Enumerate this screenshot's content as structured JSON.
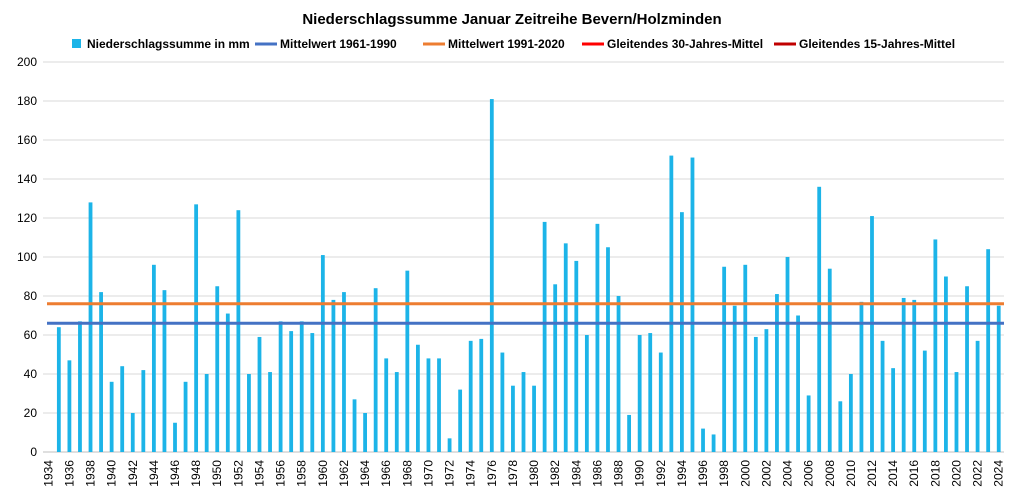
{
  "chart_data": {
    "type": "bar",
    "title": "Niederschlagssumme Januar Zeitreihe Bevern/Holzminden",
    "xlabel": "",
    "ylabel": "",
    "ylim": [
      0,
      200
    ],
    "yticks": [
      0,
      20,
      40,
      60,
      80,
      100,
      120,
      140,
      160,
      180,
      200
    ],
    "grid": "horizontal",
    "legend_position": "top",
    "x": [
      1934,
      1935,
      1936,
      1937,
      1938,
      1939,
      1940,
      1941,
      1942,
      1943,
      1944,
      1945,
      1946,
      1947,
      1948,
      1949,
      1950,
      1951,
      1952,
      1953,
      1954,
      1955,
      1956,
      1957,
      1958,
      1959,
      1960,
      1961,
      1962,
      1963,
      1964,
      1965,
      1966,
      1967,
      1968,
      1969,
      1970,
      1971,
      1972,
      1973,
      1974,
      1975,
      1976,
      1977,
      1978,
      1979,
      1980,
      1981,
      1982,
      1983,
      1984,
      1985,
      1986,
      1987,
      1988,
      1989,
      1990,
      1991,
      1992,
      1993,
      1994,
      1995,
      1996,
      1997,
      1998,
      1999,
      2000,
      2001,
      2002,
      2003,
      2004,
      2005,
      2006,
      2007,
      2008,
      2009,
      2010,
      2011,
      2012,
      2013,
      2014,
      2015,
      2016,
      2017,
      2018,
      2019,
      2020,
      2021,
      2022,
      2023,
      2024
    ],
    "series": [
      {
        "name": "Niederschlagssumme in mm",
        "type": "bar",
        "color": "#1CB4E8",
        "values": [
          null,
          64,
          47,
          67,
          128,
          82,
          36,
          44,
          20,
          42,
          96,
          83,
          15,
          36,
          127,
          40,
          85,
          71,
          124,
          40,
          59,
          41,
          67,
          62,
          67,
          61,
          101,
          78,
          82,
          27,
          20,
          84,
          48,
          41,
          93,
          55,
          48,
          48,
          7,
          32,
          57,
          58,
          181,
          51,
          34,
          41,
          34,
          118,
          86,
          107,
          98,
          60,
          117,
          105,
          80,
          19,
          60,
          61,
          51,
          152,
          123,
          151,
          12,
          9,
          95,
          75,
          96,
          59,
          63,
          81,
          100,
          70,
          29,
          136,
          94,
          26,
          40,
          77,
          121,
          57,
          43,
          79,
          78,
          52,
          109,
          90,
          41,
          85,
          57,
          104,
          75
        ]
      },
      {
        "name": "Mittelwert 1961-1990",
        "type": "line",
        "color": "#4472C4",
        "value": 66
      },
      {
        "name": "Mittelwert 1991-2020",
        "type": "line",
        "color": "#ED7D31",
        "value": 76
      },
      {
        "name": "Gleitendes 30-Jahres-Mittel",
        "type": "line",
        "color": "#FF0000",
        "values": [
          null,
          null,
          null,
          null,
          null,
          null,
          null,
          null,
          null,
          null,
          null,
          null,
          null,
          null,
          null,
          null,
          null,
          null,
          null,
          null,
          null,
          null,
          null,
          null,
          null,
          null,
          null,
          null,
          null,
          null,
          null,
          null,
          null,
          null,
          null,
          null,
          null,
          null,
          null,
          null,
          null,
          null,
          null,
          null,
          null,
          null,
          null,
          null,
          null,
          null,
          null,
          null,
          null,
          null,
          null,
          null,
          null,
          null,
          null,
          null,
          null,
          null,
          null,
          null,
          null,
          null,
          null,
          null,
          null,
          null,
          null,
          null,
          null,
          null,
          null,
          null,
          null,
          null,
          null,
          null,
          null,
          null,
          null,
          null,
          null,
          null,
          null,
          null,
          null,
          null,
          null
        ]
      },
      {
        "name": "Gleitendes 15-Jahres-Mittel",
        "type": "line",
        "color": "#C00000",
        "values": [
          null,
          null,
          null,
          null,
          null,
          null,
          null,
          null,
          null,
          null,
          null,
          null,
          null,
          null,
          null,
          null,
          null,
          null,
          null,
          null,
          null,
          null,
          null,
          null,
          null,
          null,
          null,
          null,
          null,
          null,
          null,
          null,
          null,
          null,
          null,
          null,
          null,
          null,
          null,
          null,
          null,
          null,
          null,
          null,
          null,
          null,
          null,
          null,
          null,
          null,
          null,
          null,
          null,
          null,
          null,
          null,
          null,
          null,
          null,
          null,
          null,
          null,
          null,
          null,
          null,
          null,
          null,
          null,
          null,
          null,
          null,
          null,
          null,
          null,
          null,
          null,
          null,
          null,
          null,
          null,
          null,
          null,
          null,
          null,
          null,
          null,
          null,
          null,
          null,
          null,
          null
        ]
      }
    ]
  }
}
